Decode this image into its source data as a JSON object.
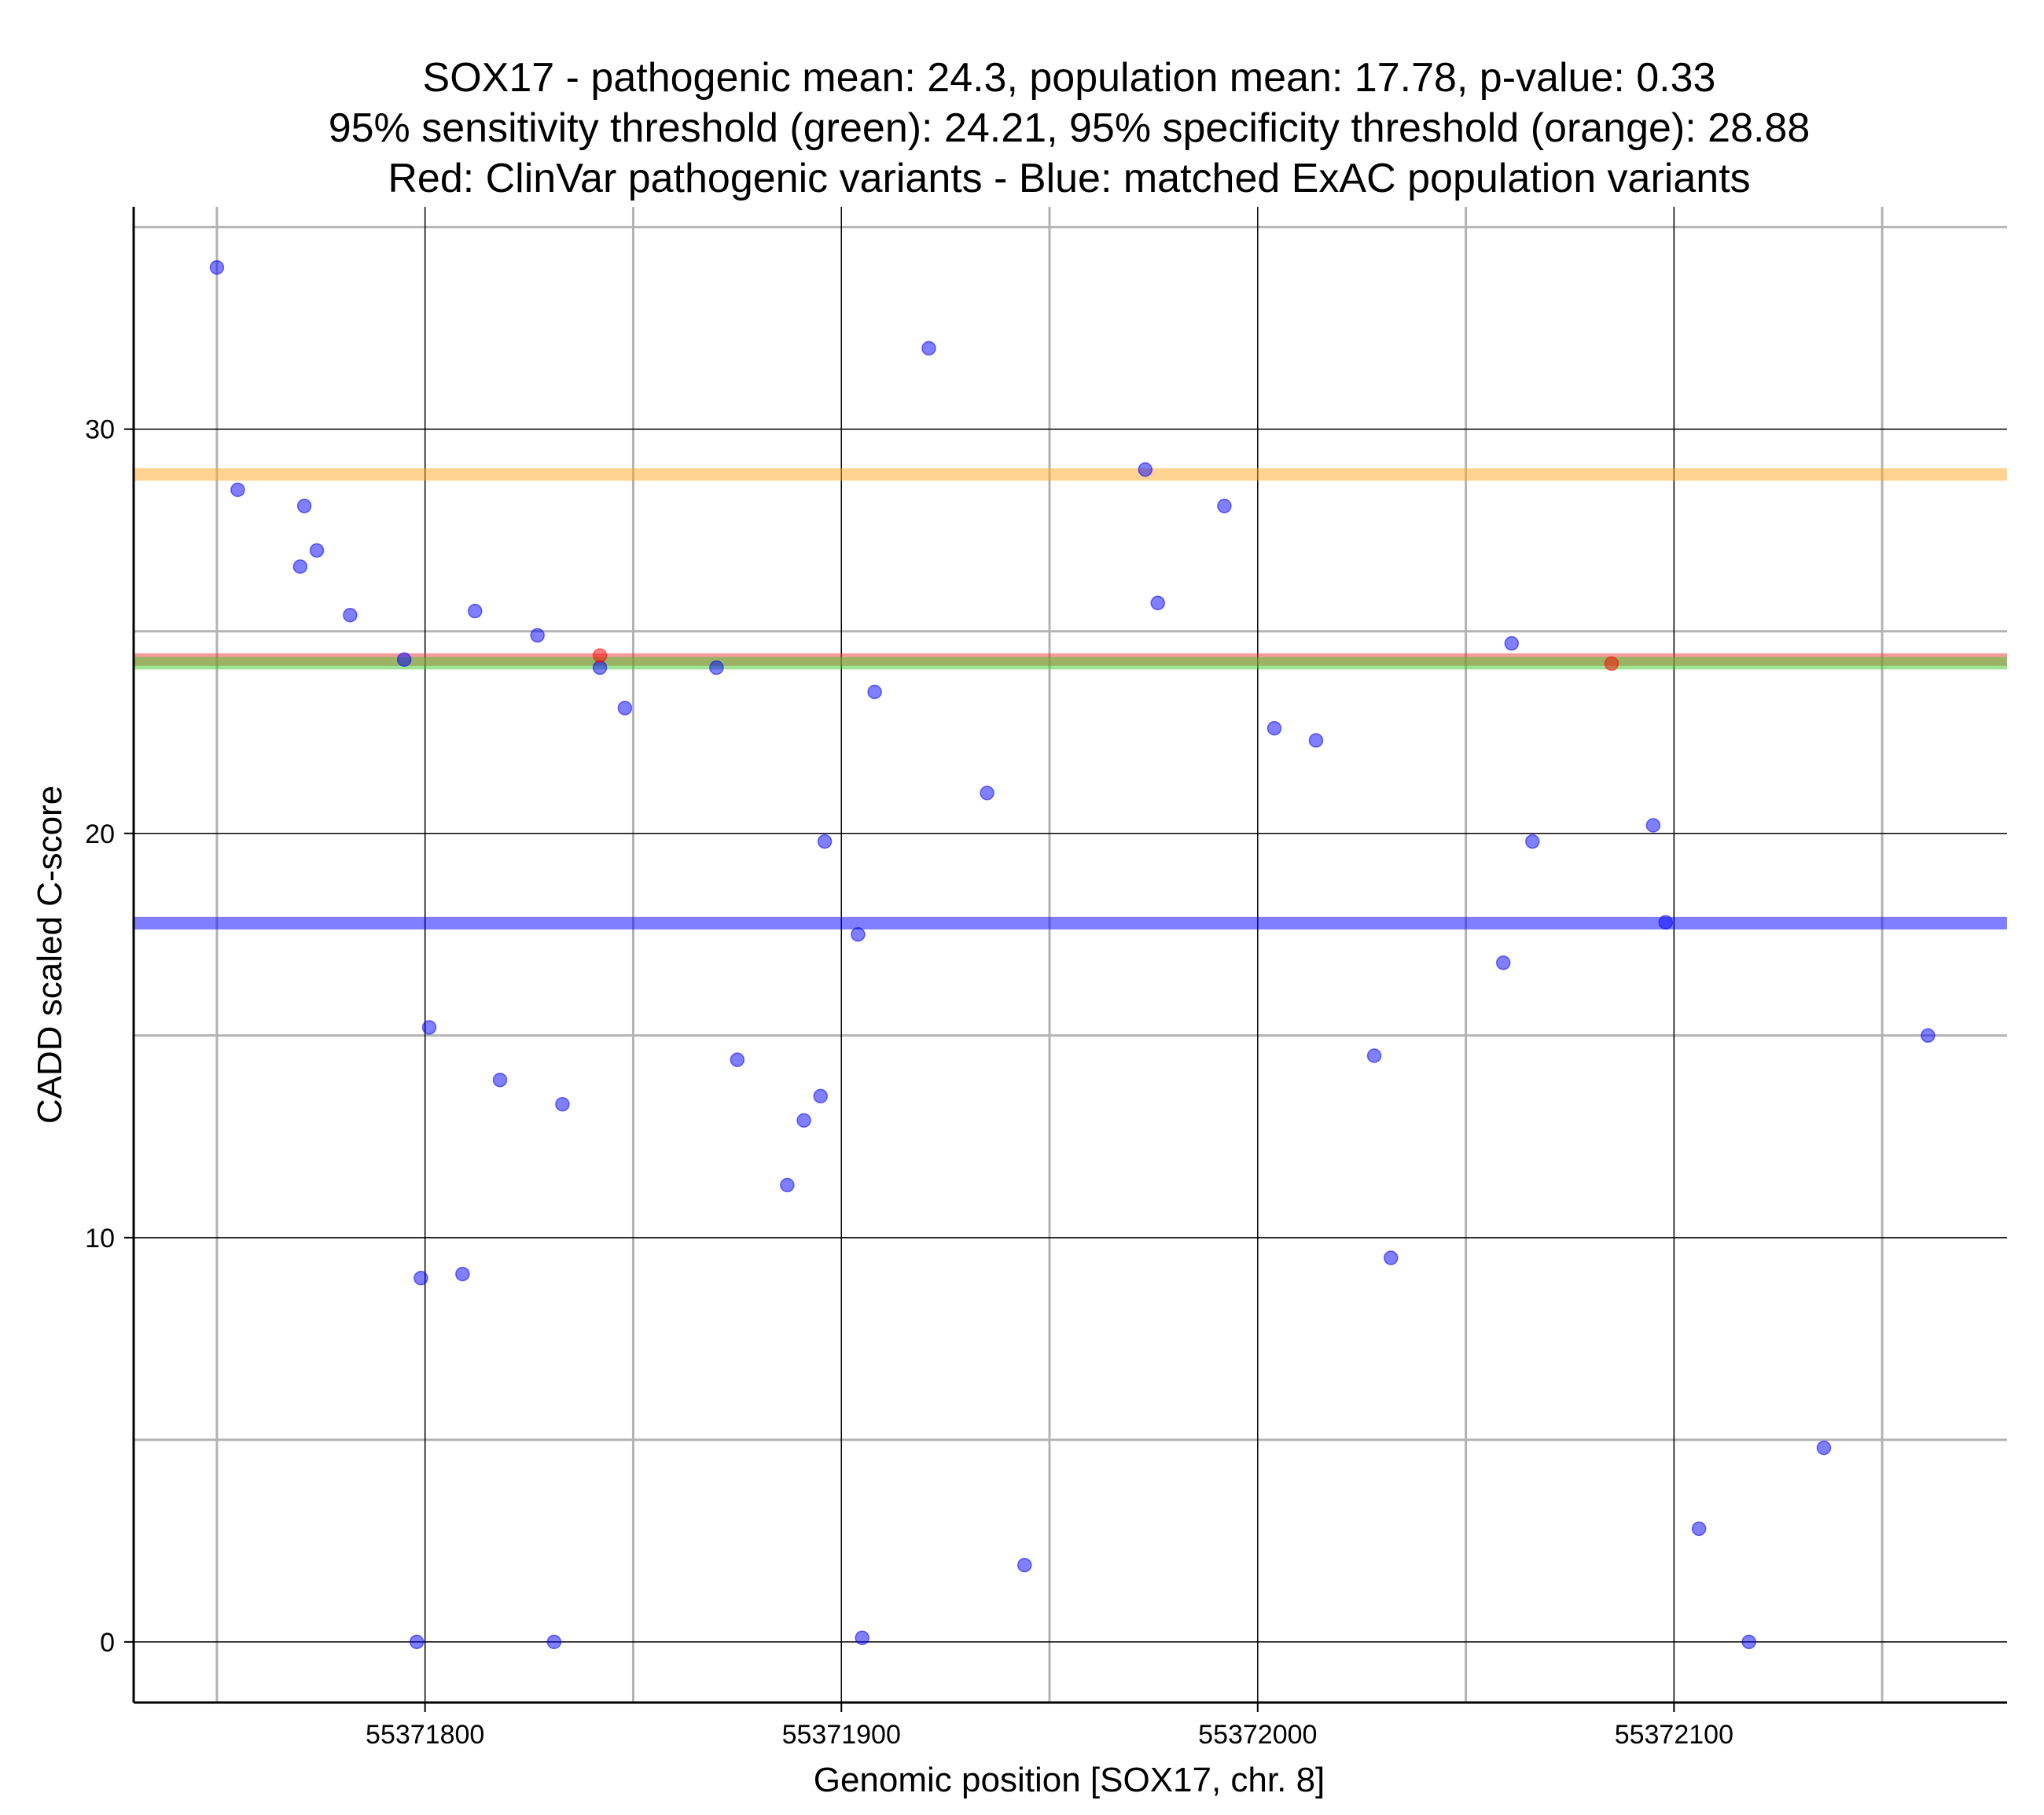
{
  "chart_data": {
    "type": "scatter",
    "title_lines": [
      "SOX17 - pathogenic mean: 24.3, population mean: 17.78, p-value: 0.33",
      "95% sensitivity threshold (green): 24.21, 95% specificity threshold (orange): 28.88",
      "Red: ClinVar pathogenic variants - Blue: matched ExAC population variants"
    ],
    "xlabel": "Genomic position [SOX17, chr. 8]",
    "ylabel": "CADD scaled C-score",
    "xlim": [
      55371730,
      55372180
    ],
    "ylim": [
      -1.5,
      35.5
    ],
    "x_major_ticks": [
      55371800,
      55371900,
      55372000,
      55372100
    ],
    "x_minor_ticks": [
      55371750,
      55371850,
      55371950,
      55372050,
      55372150
    ],
    "y_major_ticks": [
      0,
      10,
      20,
      30
    ],
    "y_minor_ticks": [
      5,
      15,
      25,
      35
    ],
    "x_tick_labels": [
      "55371800",
      "55371900",
      "55372000",
      "55372100"
    ],
    "y_tick_labels": [
      "0",
      "10",
      "20",
      "30"
    ],
    "hlines": [
      {
        "name": "specificity-threshold",
        "y": 28.88,
        "color": "#ffa726"
      },
      {
        "name": "pathogenic-mean",
        "y": 24.3,
        "color": "#e53935"
      },
      {
        "name": "sensitivity-threshold",
        "y": 24.21,
        "color": "#43c92b"
      },
      {
        "name": "population-mean",
        "y": 17.78,
        "color": "#0000ff"
      }
    ],
    "series": [
      {
        "name": "ClinVar pathogenic variants",
        "color": "#ff0000",
        "points": [
          {
            "x": 55371842,
            "y": 24.4
          },
          {
            "x": 55372085,
            "y": 24.2
          }
        ]
      },
      {
        "name": "matched ExAC population variants",
        "color": "#0000ff",
        "points": [
          {
            "x": 55371750,
            "y": 34.0
          },
          {
            "x": 55371755,
            "y": 28.5
          },
          {
            "x": 55371771,
            "y": 28.1
          },
          {
            "x": 55371770,
            "y": 26.6
          },
          {
            "x": 55371774,
            "y": 27.0
          },
          {
            "x": 55371782,
            "y": 25.4
          },
          {
            "x": 55371795,
            "y": 24.3
          },
          {
            "x": 55371799,
            "y": 9.0
          },
          {
            "x": 55371798,
            "y": 0.0
          },
          {
            "x": 55371801,
            "y": 15.2
          },
          {
            "x": 55371809,
            "y": 9.1
          },
          {
            "x": 55371812,
            "y": 25.5
          },
          {
            "x": 55371818,
            "y": 13.9
          },
          {
            "x": 55371827,
            "y": 24.9
          },
          {
            "x": 55371831,
            "y": 0.0
          },
          {
            "x": 55371833,
            "y": 13.3
          },
          {
            "x": 55371842,
            "y": 24.1
          },
          {
            "x": 55371848,
            "y": 23.1
          },
          {
            "x": 55371870,
            "y": 24.1
          },
          {
            "x": 55371875,
            "y": 14.4
          },
          {
            "x": 55371887,
            "y": 11.3
          },
          {
            "x": 55371891,
            "y": 12.9
          },
          {
            "x": 55371895,
            "y": 13.5
          },
          {
            "x": 55371896,
            "y": 19.8
          },
          {
            "x": 55371904,
            "y": 17.5
          },
          {
            "x": 55371905,
            "y": 0.1
          },
          {
            "x": 55371908,
            "y": 23.5
          },
          {
            "x": 55371921,
            "y": 32.0
          },
          {
            "x": 55371935,
            "y": 21.0
          },
          {
            "x": 55371944,
            "y": 1.9
          },
          {
            "x": 55371973,
            "y": 29.0
          },
          {
            "x": 55371976,
            "y": 25.7
          },
          {
            "x": 55371992,
            "y": 28.1
          },
          {
            "x": 55372004,
            "y": 22.6
          },
          {
            "x": 55372014,
            "y": 22.3
          },
          {
            "x": 55372028,
            "y": 14.5
          },
          {
            "x": 55372032,
            "y": 9.5
          },
          {
            "x": 55372059,
            "y": 16.8
          },
          {
            "x": 55372061,
            "y": 24.7
          },
          {
            "x": 55372066,
            "y": 19.8
          },
          {
            "x": 55372095,
            "y": 20.2
          },
          {
            "x": 55372098,
            "y": 17.8
          },
          {
            "x": 55372106,
            "y": 2.8
          },
          {
            "x": 55372118,
            "y": 0.0
          },
          {
            "x": 55372136,
            "y": 4.8
          },
          {
            "x": 55372161,
            "y": 15.0
          }
        ]
      }
    ]
  }
}
